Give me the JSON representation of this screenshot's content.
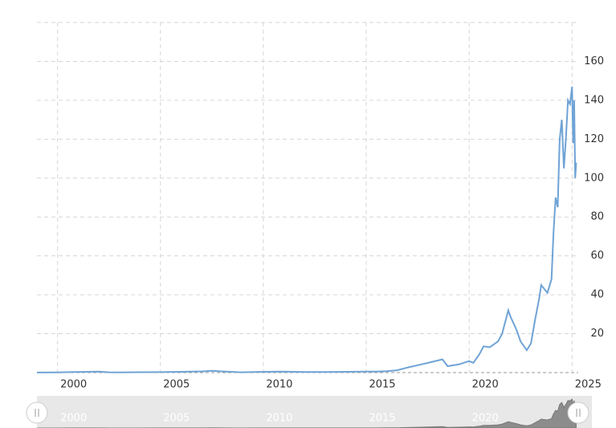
{
  "chart_data": {
    "type": "line",
    "x": [
      1999.0,
      2000.0,
      2000.8,
      2001.5,
      2002.0,
      2002.5,
      2003.0,
      2004.0,
      2005.0,
      2006.0,
      2007.0,
      2007.5,
      2008.0,
      2008.9,
      2010.0,
      2011.0,
      2012.0,
      2013.0,
      2014.0,
      2015.0,
      2015.5,
      2016.0,
      2016.5,
      2017.0,
      2017.5,
      2018.0,
      2018.7,
      2018.95,
      2019.5,
      2020.0,
      2020.2,
      2020.5,
      2020.7,
      2021.0,
      2021.4,
      2021.6,
      2021.9,
      2022.0,
      2022.3,
      2022.5,
      2022.8,
      2023.0,
      2023.2,
      2023.4,
      2023.5,
      2023.8,
      2024.0,
      2024.1,
      2024.2,
      2024.3,
      2024.4,
      2024.5,
      2024.6,
      2024.7,
      2024.8,
      2024.9,
      2025.0,
      2025.05,
      2025.1,
      2025.15,
      2025.2
    ],
    "values": [
      0.04,
      0.1,
      0.3,
      0.4,
      0.5,
      0.15,
      0.1,
      0.2,
      0.25,
      0.4,
      0.6,
      0.9,
      0.6,
      0.15,
      0.4,
      0.5,
      0.3,
      0.3,
      0.4,
      0.5,
      0.5,
      0.7,
      1.2,
      2.6,
      3.8,
      5,
      6.8,
      3.3,
      4.2,
      5.9,
      5,
      9.5,
      13.5,
      13,
      16,
      20,
      32,
      29,
      22,
      16,
      11.5,
      15,
      27,
      38,
      45,
      41,
      48,
      72,
      90,
      85,
      120,
      130,
      105,
      120,
      140,
      138,
      147,
      118,
      140,
      100,
      108
    ],
    "color": "#6fa3d6",
    "xlim": [
      1999.0,
      2025.3
    ],
    "xticks": [
      2000,
      2005,
      2010,
      2015,
      2020,
      2025
    ],
    "ylim": [
      0,
      180
    ],
    "yticks": [
      20,
      40,
      60,
      80,
      100,
      120,
      140,
      160
    ],
    "grid": true
  }
}
